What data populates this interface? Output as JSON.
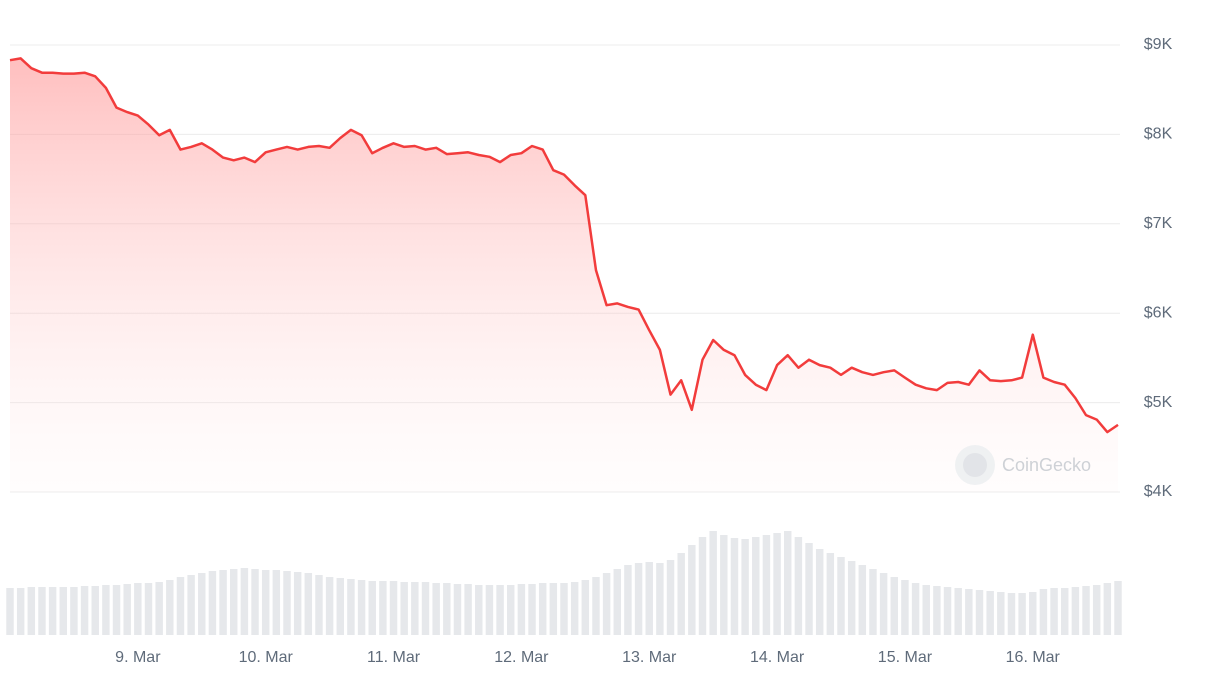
{
  "chart_data": {
    "type": "area",
    "color": "#f23c3c",
    "ylim": [
      4000,
      9000
    ],
    "yticks": [
      {
        "value": 4000,
        "label": "$4K"
      },
      {
        "value": 5000,
        "label": "$5K"
      },
      {
        "value": 6000,
        "label": "$6K"
      },
      {
        "value": 7000,
        "label": "$7K"
      },
      {
        "value": 8000,
        "label": "$8K"
      },
      {
        "value": 9000,
        "label": "$9K"
      }
    ],
    "grid": true,
    "watermark": "CoinGecko",
    "categories": [
      null,
      null,
      null,
      null,
      null,
      null,
      null,
      null,
      null,
      null,
      null,
      null,
      "9. Mar",
      null,
      null,
      null,
      null,
      null,
      null,
      null,
      null,
      null,
      null,
      null,
      "10. Mar",
      null,
      null,
      null,
      null,
      null,
      null,
      null,
      null,
      null,
      null,
      null,
      "11. Mar",
      null,
      null,
      null,
      null,
      null,
      null,
      null,
      null,
      null,
      null,
      null,
      "12. Mar",
      null,
      null,
      null,
      null,
      null,
      null,
      null,
      null,
      null,
      null,
      null,
      "13. Mar",
      null,
      null,
      null,
      null,
      null,
      null,
      null,
      null,
      null,
      null,
      null,
      "14. Mar",
      null,
      null,
      null,
      null,
      null,
      null,
      null,
      null,
      null,
      null,
      null,
      "15. Mar",
      null,
      null,
      null,
      null,
      null,
      null,
      null,
      null,
      null,
      null,
      null,
      "16. Mar",
      null,
      null,
      null,
      null,
      null,
      null,
      null,
      null
    ],
    "values": [
      8830,
      8850,
      8740,
      8690,
      8690,
      8680,
      8680,
      8690,
      8650,
      8520,
      8300,
      8250,
      8210,
      8110,
      7990,
      8050,
      7830,
      7860,
      7900,
      7830,
      7740,
      7710,
      7740,
      7690,
      7800,
      7830,
      7860,
      7830,
      7860,
      7870,
      7850,
      7960,
      8050,
      7990,
      7790,
      7850,
      7900,
      7860,
      7870,
      7830,
      7850,
      7780,
      7790,
      7800,
      7770,
      7750,
      7690,
      7770,
      7790,
      7870,
      7830,
      7600,
      7550,
      7430,
      7320,
      6480,
      6090,
      6110,
      6070,
      6040,
      5810,
      5590,
      5090,
      5250,
      4920,
      5480,
      5700,
      5590,
      5530,
      5310,
      5200,
      5140,
      5420,
      5530,
      5390,
      5480,
      5420,
      5390,
      5310,
      5390,
      5340,
      5310,
      5340,
      5360,
      5280,
      5200,
      5160,
      5140,
      5220,
      5230,
      5200,
      5360,
      5250,
      5240,
      5250,
      5280,
      5760,
      5280,
      5230,
      5200,
      5050,
      4860,
      4810,
      4670,
      4750
    ],
    "volume": [
      47,
      47,
      48,
      48,
      48,
      48,
      48,
      49,
      49,
      50,
      50,
      51,
      52,
      52,
      53,
      55,
      58,
      60,
      62,
      64,
      65,
      66,
      67,
      66,
      65,
      65,
      64,
      63,
      62,
      60,
      58,
      57,
      56,
      55,
      54,
      54,
      54,
      53,
      53,
      53,
      52,
      52,
      51,
      51,
      50,
      50,
      50,
      50,
      51,
      51,
      52,
      52,
      52,
      53,
      55,
      58,
      62,
      66,
      70,
      72,
      73,
      72,
      75,
      82,
      90,
      98,
      104,
      100,
      97,
      96,
      98,
      100,
      102,
      104,
      98,
      92,
      86,
      82,
      78,
      74,
      70,
      66,
      62,
      58,
      55,
      52,
      50,
      49,
      48,
      47,
      46,
      45,
      44,
      43,
      42,
      42,
      43,
      46,
      47,
      47,
      48,
      49,
      50,
      52,
      54
    ]
  }
}
